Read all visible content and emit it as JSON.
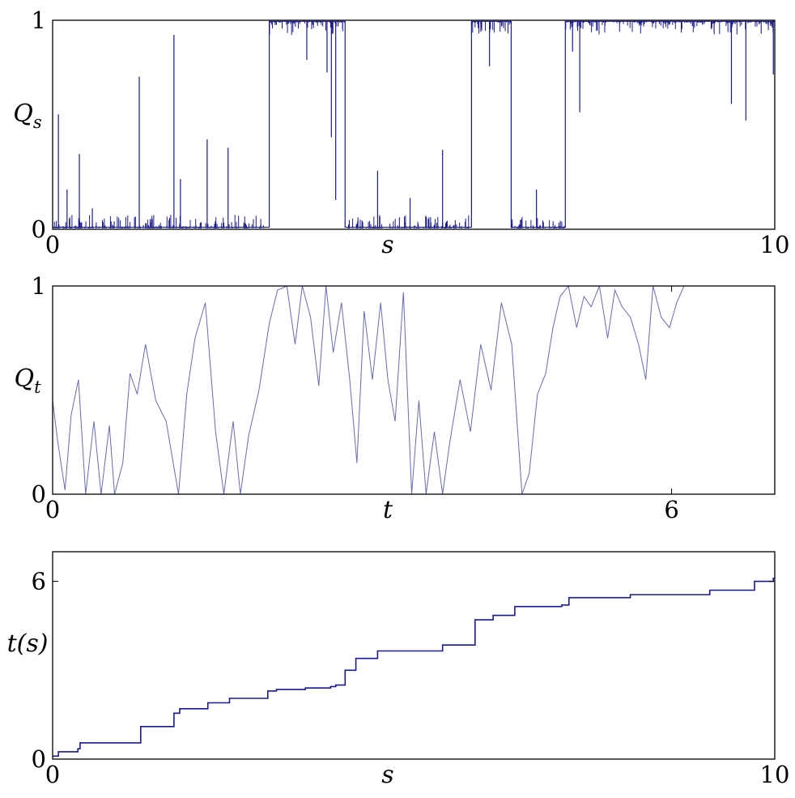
{
  "chart_data": [
    {
      "type": "line",
      "ylabel": "Q_s",
      "xlabel": "s",
      "xlim": [
        0,
        10
      ],
      "ylim": [
        0,
        1
      ],
      "x_ticks": [
        "0",
        "10"
      ],
      "y_ticks": [
        "0",
        "1"
      ],
      "line_color": "#1a1a8c",
      "regimes": [
        {
          "x_start": 0.0,
          "x_end": 3.0,
          "level": 0
        },
        {
          "x_start": 3.0,
          "x_end": 4.05,
          "level": 1
        },
        {
          "x_start": 4.05,
          "x_end": 5.8,
          "level": 0
        },
        {
          "x_start": 5.8,
          "x_end": 6.35,
          "level": 1
        },
        {
          "x_start": 6.35,
          "x_end": 7.1,
          "level": 0
        },
        {
          "x_start": 7.1,
          "x_end": 10.0,
          "level": 1
        }
      ],
      "spikes": [
        {
          "x": 0.08,
          "y": 0.55
        },
        {
          "x": 0.2,
          "y": 0.19
        },
        {
          "x": 0.37,
          "y": 0.36
        },
        {
          "x": 0.55,
          "y": 0.1
        },
        {
          "x": 1.2,
          "y": 0.73
        },
        {
          "x": 1.68,
          "y": 0.93
        },
        {
          "x": 1.77,
          "y": 0.24
        },
        {
          "x": 2.14,
          "y": 0.43
        },
        {
          "x": 2.43,
          "y": 0.39
        },
        {
          "x": 3.52,
          "y": 0.81
        },
        {
          "x": 3.8,
          "y": 0.75
        },
        {
          "x": 3.86,
          "y": 0.44
        },
        {
          "x": 3.92,
          "y": 0.14
        },
        {
          "x": 4.5,
          "y": 0.28
        },
        {
          "x": 4.95,
          "y": 0.15
        },
        {
          "x": 5.4,
          "y": 0.38
        },
        {
          "x": 6.05,
          "y": 0.78
        },
        {
          "x": 6.7,
          "y": 0.19
        },
        {
          "x": 7.2,
          "y": 0.85
        },
        {
          "x": 7.3,
          "y": 0.56
        },
        {
          "x": 9.4,
          "y": 0.6
        },
        {
          "x": 9.6,
          "y": 0.52
        },
        {
          "x": 9.98,
          "y": 0.74
        }
      ]
    },
    {
      "type": "line",
      "ylabel": "Q_t",
      "xlabel": "t",
      "xlim": [
        0,
        7
      ],
      "ylim": [
        0,
        1
      ],
      "x_ticks": [
        "0",
        "6"
      ],
      "y_ticks": [
        "0",
        "1"
      ],
      "line_color": "#6a6ab4",
      "x": [
        0.0,
        0.05,
        0.12,
        0.18,
        0.25,
        0.32,
        0.4,
        0.47,
        0.55,
        0.6,
        0.68,
        0.75,
        0.82,
        0.9,
        1.0,
        1.1,
        1.22,
        1.3,
        1.38,
        1.48,
        1.58,
        1.66,
        1.75,
        1.82,
        1.9,
        2.0,
        2.1,
        2.18,
        2.27,
        2.35,
        2.42,
        2.5,
        2.58,
        2.65,
        2.72,
        2.8,
        2.88,
        2.95,
        3.02,
        3.1,
        3.18,
        3.25,
        3.32,
        3.4,
        3.48,
        3.55,
        3.62,
        3.7,
        3.78,
        3.85,
        3.95,
        4.05,
        4.15,
        4.25,
        4.35,
        4.45,
        4.55,
        4.62,
        4.7,
        4.78,
        4.85,
        4.92,
        5.0,
        5.08,
        5.15,
        5.22,
        5.3,
        5.38,
        5.45,
        5.52,
        5.6,
        5.68,
        5.75,
        5.82,
        5.9,
        5.98,
        6.05,
        6.12
      ],
      "y": [
        0.45,
        0.25,
        0.02,
        0.38,
        0.55,
        0.0,
        0.35,
        0.0,
        0.33,
        0.0,
        0.15,
        0.58,
        0.48,
        0.72,
        0.45,
        0.35,
        0.0,
        0.48,
        0.75,
        0.92,
        0.3,
        0.0,
        0.35,
        0.0,
        0.28,
        0.5,
        0.82,
        0.98,
        1.0,
        0.72,
        1.0,
        0.85,
        0.52,
        1.0,
        0.68,
        0.92,
        0.55,
        0.15,
        0.88,
        0.55,
        0.92,
        0.55,
        0.35,
        0.97,
        0.0,
        0.45,
        0.0,
        0.3,
        0.0,
        0.25,
        0.55,
        0.3,
        0.72,
        0.5,
        0.92,
        0.72,
        0.0,
        0.1,
        0.48,
        0.58,
        0.8,
        0.95,
        1.0,
        0.8,
        0.95,
        0.9,
        1.0,
        0.75,
        0.98,
        0.9,
        0.85,
        0.72,
        0.55,
        1.0,
        0.85,
        0.8,
        0.92,
        1.0
      ]
    },
    {
      "type": "line",
      "ylabel": "t(s)",
      "xlabel": "s",
      "xlim": [
        0,
        10
      ],
      "ylim": [
        0,
        7
      ],
      "x_ticks": [
        "0",
        "10"
      ],
      "y_ticks": [
        "0",
        "6"
      ],
      "line_color": "#1a1a8c",
      "x": [
        0.0,
        0.08,
        0.08,
        0.35,
        0.35,
        0.38,
        0.38,
        1.22,
        1.22,
        1.68,
        1.68,
        1.76,
        1.76,
        2.15,
        2.15,
        2.45,
        2.45,
        2.98,
        2.98,
        3.1,
        3.1,
        3.5,
        3.5,
        3.85,
        3.85,
        3.92,
        3.92,
        4.05,
        4.05,
        4.2,
        4.2,
        4.5,
        4.5,
        5.4,
        5.4,
        5.85,
        5.85,
        6.1,
        6.1,
        6.4,
        6.4,
        7.05,
        7.05,
        7.15,
        7.15,
        8.0,
        8.0,
        9.1,
        9.1,
        9.72,
        9.72,
        9.98,
        9.98,
        10.0
      ],
      "y": [
        0.1,
        0.1,
        0.25,
        0.25,
        0.35,
        0.35,
        0.55,
        0.55,
        1.1,
        1.1,
        1.55,
        1.55,
        1.7,
        1.7,
        1.9,
        1.9,
        2.05,
        2.05,
        2.3,
        2.3,
        2.35,
        2.35,
        2.4,
        2.4,
        2.45,
        2.45,
        2.5,
        2.5,
        3.0,
        3.0,
        3.4,
        3.4,
        3.65,
        3.65,
        3.85,
        3.85,
        4.7,
        4.7,
        4.85,
        4.85,
        5.15,
        5.15,
        5.2,
        5.2,
        5.45,
        5.45,
        5.55,
        5.55,
        5.7,
        5.7,
        6.0,
        6.0,
        6.1,
        6.1
      ]
    }
  ]
}
